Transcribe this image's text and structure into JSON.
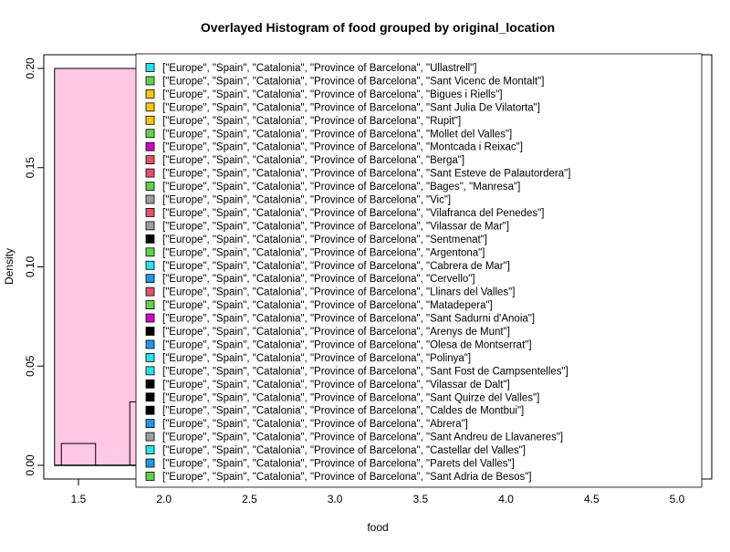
{
  "chart_data": {
    "type": "histogram",
    "title": "Overlayed Histogram of food grouped by original_location",
    "xlabel": "food",
    "ylabel": "Density",
    "xlim": [
      1.35,
      5.1
    ],
    "ylim": [
      0,
      0.2
    ],
    "x_ticks": [
      1.5,
      2.0,
      2.5,
      3.0,
      3.5,
      4.0,
      4.5,
      5.0
    ],
    "x_tick_labels": [
      "1.5",
      "2.0",
      "2.5",
      "3.0",
      "3.5",
      "4.0",
      "4.5",
      "5.0"
    ],
    "y_ticks": [
      0.0,
      0.05,
      0.1,
      0.15,
      0.2
    ],
    "y_tick_labels": [
      "0.00",
      "0.05",
      "0.10",
      "0.15",
      "0.20"
    ],
    "bars": [
      {
        "x0": 1.36,
        "x1": 1.85,
        "density": 0.2,
        "fill": "#ffc8e6",
        "stroke": "#000000"
      },
      {
        "x0": 1.4,
        "x1": 1.6,
        "density": 0.011,
        "fill": "none",
        "stroke": "#000000"
      },
      {
        "x0": 1.8,
        "x1": 1.85,
        "density": 0.032,
        "fill": "none",
        "stroke": "#000000"
      }
    ],
    "legend_position": "top-right",
    "legend": [
      {
        "label": "[\"Europe\", \"Spain\", \"Catalonia\", \"Province of Barcelona\", \"Ullastrell\"]",
        "color": "#28e2e5"
      },
      {
        "label": "[\"Europe\", \"Spain\", \"Catalonia\", \"Province of Barcelona\", \"Sant Vicenc de Montalt\"]",
        "color": "#61d04f"
      },
      {
        "label": "[\"Europe\", \"Spain\", \"Catalonia\", \"Province of Barcelona\", \"Bigues i Riells\"]",
        "color": "#f5c710"
      },
      {
        "label": "[\"Europe\", \"Spain\", \"Catalonia\", \"Province of Barcelona\", \"Sant Julia De Vilatorta\"]",
        "color": "#f5c710"
      },
      {
        "label": "[\"Europe\", \"Spain\", \"Catalonia\", \"Province of Barcelona\", \"Rupit\"]",
        "color": "#f5c710"
      },
      {
        "label": "[\"Europe\", \"Spain\", \"Catalonia\", \"Province of Barcelona\", \"Mollet del Valles\"]",
        "color": "#61d04f"
      },
      {
        "label": "[\"Europe\", \"Spain\", \"Catalonia\", \"Province of Barcelona\", \"Montcada i Reixac\"]",
        "color": "#cd0bbc"
      },
      {
        "label": "[\"Europe\", \"Spain\", \"Catalonia\", \"Province of Barcelona\", \"Berga\"]",
        "color": "#df536b"
      },
      {
        "label": "[\"Europe\", \"Spain\", \"Catalonia\", \"Province of Barcelona\", \"Sant Esteve de Palautordera\"]",
        "color": "#df536b"
      },
      {
        "label": "[\"Europe\", \"Spain\", \"Catalonia\", \"Province of Barcelona\", \"Bages\", \"Manresa\"]",
        "color": "#61d04f"
      },
      {
        "label": "[\"Europe\", \"Spain\", \"Catalonia\", \"Province of Barcelona\", \"Vic\"]",
        "color": "#9e9e9e"
      },
      {
        "label": "[\"Europe\", \"Spain\", \"Catalonia\", \"Province of Barcelona\", \"Vilafranca del Penedes\"]",
        "color": "#df536b"
      },
      {
        "label": "[\"Europe\", \"Spain\", \"Catalonia\", \"Province of Barcelona\", \"Vilassar de Mar\"]",
        "color": "#9e9e9e"
      },
      {
        "label": "[\"Europe\", \"Spain\", \"Catalonia\", \"Province of Barcelona\", \"Sentmenat\"]",
        "color": "#000000"
      },
      {
        "label": "[\"Europe\", \"Spain\", \"Catalonia\", \"Province of Barcelona\", \"Argentona\"]",
        "color": "#61d04f"
      },
      {
        "label": "[\"Europe\", \"Spain\", \"Catalonia\", \"Province of Barcelona\", \"Cabrera de Mar\"]",
        "color": "#28e2e5"
      },
      {
        "label": "[\"Europe\", \"Spain\", \"Catalonia\", \"Province of Barcelona\", \"Cervello\"]",
        "color": "#2297e6"
      },
      {
        "label": "[\"Europe\", \"Spain\", \"Catalonia\", \"Province of Barcelona\", \"Llinars del Valles\"]",
        "color": "#df536b"
      },
      {
        "label": "[\"Europe\", \"Spain\", \"Catalonia\", \"Province of Barcelona\", \"Matadepera\"]",
        "color": "#61d04f"
      },
      {
        "label": "[\"Europe\", \"Spain\", \"Catalonia\", \"Province of Barcelona\", \"Sant Sadurni d'Anoia\"]",
        "color": "#cd0bbc"
      },
      {
        "label": "[\"Europe\", \"Spain\", \"Catalonia\", \"Province of Barcelona\", \"Arenys de Munt\"]",
        "color": "#000000"
      },
      {
        "label": "[\"Europe\", \"Spain\", \"Catalonia\", \"Province of Barcelona\", \"Olesa de Montserrat\"]",
        "color": "#2297e6"
      },
      {
        "label": "[\"Europe\", \"Spain\", \"Catalonia\", \"Province of Barcelona\", \"Polinya\"]",
        "color": "#28e2e5"
      },
      {
        "label": "[\"Europe\", \"Spain\", \"Catalonia\", \"Province of Barcelona\", \"Sant Fost de Campsentelles\"]",
        "color": "#28e2e5"
      },
      {
        "label": "[\"Europe\", \"Spain\", \"Catalonia\", \"Province of Barcelona\", \"Vilassar de Dalt\"]",
        "color": "#000000"
      },
      {
        "label": "[\"Europe\", \"Spain\", \"Catalonia\", \"Province of Barcelona\", \"Sant Quirze del Valles\"]",
        "color": "#000000"
      },
      {
        "label": "[\"Europe\", \"Spain\", \"Catalonia\", \"Province of Barcelona\", \"Caldes de Montbui\"]",
        "color": "#000000"
      },
      {
        "label": "[\"Europe\", \"Spain\", \"Catalonia\", \"Province of Barcelona\", \"Abrera\"]",
        "color": "#2297e6"
      },
      {
        "label": "[\"Europe\", \"Spain\", \"Catalonia\", \"Province of Barcelona\", \"Sant Andreu de Llavaneres\"]",
        "color": "#9e9e9e"
      },
      {
        "label": "[\"Europe\", \"Spain\", \"Catalonia\", \"Province of Barcelona\", \"Castellar del Valles\"]",
        "color": "#28e2e5"
      },
      {
        "label": "[\"Europe\", \"Spain\", \"Catalonia\", \"Province of Barcelona\", \"Parets del Valles\"]",
        "color": "#2297e6"
      },
      {
        "label": "[\"Europe\", \"Spain\", \"Catalonia\", \"Province of Barcelona\", \"Sant Adria de Besos\"]",
        "color": "#61d04f"
      }
    ]
  }
}
